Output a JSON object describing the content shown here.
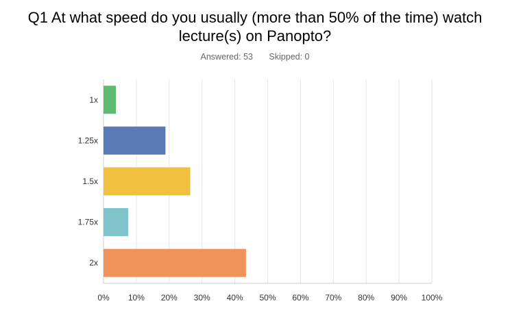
{
  "question": {
    "title_line1": "Q1 At what speed do you usually (more than 50% of the time) watch",
    "title_line2": "lecture(s) on Panopto?",
    "answered": "Answered: 53",
    "skipped": "Skipped: 0"
  },
  "chart_data": {
    "type": "bar",
    "orientation": "horizontal",
    "categories": [
      "1x",
      "1.25x",
      "1.5x",
      "1.75x",
      "2x"
    ],
    "values": [
      3.77,
      18.87,
      26.42,
      7.55,
      43.4
    ],
    "colors": [
      "#5cbb70",
      "#5a7bb5",
      "#f0c13f",
      "#7fc4cb",
      "#f0935a"
    ],
    "xlim": [
      0,
      100
    ],
    "x_ticks": [
      "0%",
      "10%",
      "20%",
      "30%",
      "40%",
      "50%",
      "60%",
      "70%",
      "80%",
      "90%",
      "100%"
    ],
    "grid": true,
    "gridline_color": "#e6e6e6",
    "axis_color": "#cfcfcf",
    "label_color": "#333333"
  }
}
